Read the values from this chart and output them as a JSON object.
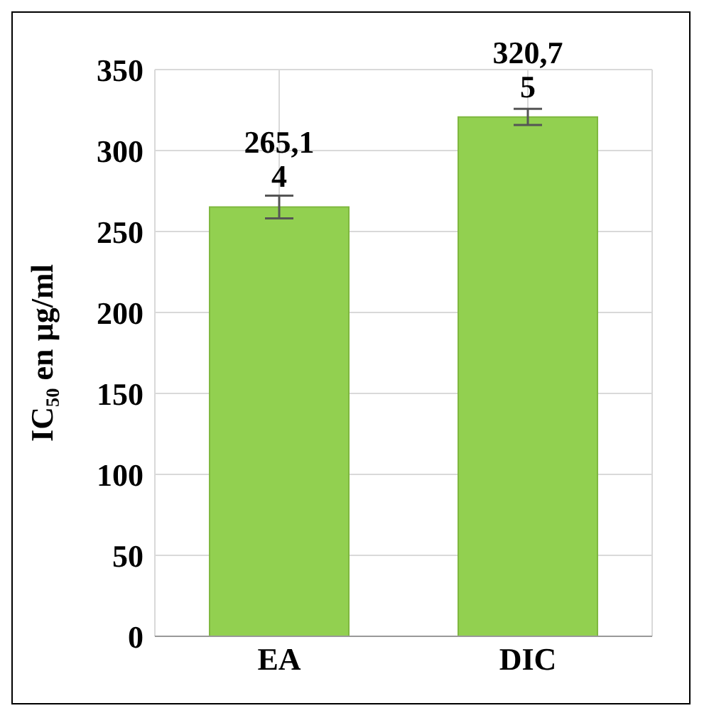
{
  "chart_data": {
    "type": "bar",
    "ylabel": "IC₅₀ en µg/ml",
    "categories": [
      "EA",
      "DIC"
    ],
    "values": [
      265.14,
      320.75
    ],
    "color": "#92d050",
    "errors": [
      7,
      5
    ],
    "value_labels": [
      "265,14",
      "320,75"
    ],
    "ylim": [
      0,
      350
    ],
    "yticks": [
      0,
      50,
      100,
      150,
      200,
      250,
      300,
      350
    ],
    "grid": true
  }
}
